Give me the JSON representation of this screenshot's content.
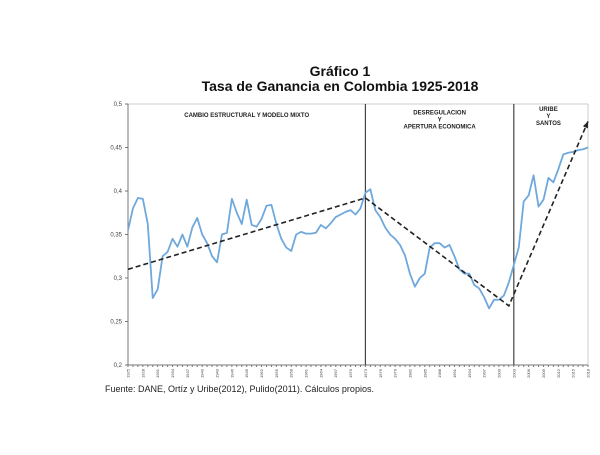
{
  "chart_data": {
    "type": "line",
    "title": "Gráfico 1",
    "subtitle": "Tasa de Ganancia en Colombia 1925-2018",
    "xlabel": "",
    "ylabel": "",
    "xlim": [
      1925,
      2018
    ],
    "ylim": [
      0.2,
      0.5
    ],
    "yticks": [
      "0,2",
      "0,25",
      "0,3",
      "0,35",
      "0,4",
      "0,45",
      "0,5"
    ],
    "xtick_step": 3,
    "grid": false,
    "series_color": "#6fa8dc",
    "trend_color": "#222222",
    "x_start": 1925,
    "values": [
      0.355,
      0.38,
      0.392,
      0.391,
      0.362,
      0.277,
      0.287,
      0.325,
      0.33,
      0.345,
      0.336,
      0.35,
      0.336,
      0.358,
      0.369,
      0.35,
      0.34,
      0.325,
      0.318,
      0.35,
      0.352,
      0.391,
      0.375,
      0.362,
      0.39,
      0.361,
      0.359,
      0.368,
      0.383,
      0.384,
      0.362,
      0.345,
      0.335,
      0.331,
      0.35,
      0.353,
      0.351,
      0.351,
      0.352,
      0.361,
      0.357,
      0.363,
      0.37,
      0.373,
      0.376,
      0.378,
      0.373,
      0.38,
      0.398,
      0.402,
      0.378,
      0.37,
      0.358,
      0.35,
      0.345,
      0.338,
      0.326,
      0.305,
      0.29,
      0.3,
      0.305,
      0.335,
      0.34,
      0.34,
      0.335,
      0.338,
      0.325,
      0.31,
      0.305,
      0.305,
      0.292,
      0.288,
      0.278,
      0.265,
      0.275,
      0.275,
      0.28,
      0.295,
      0.315,
      0.335,
      0.388,
      0.395,
      0.418,
      0.382,
      0.39,
      0.415,
      0.41,
      0.425,
      0.442,
      0.444,
      0.445,
      0.447,
      0.448,
      0.45
    ],
    "trend": [
      {
        "x": 1925,
        "y": 0.31
      },
      {
        "x": 1973,
        "y": 0.392
      },
      {
        "x": 2002,
        "y": 0.268
      },
      {
        "x": 2018,
        "y": 0.48
      }
    ],
    "period_dividers": [
      1973,
      2003
    ],
    "annotations": [
      {
        "lines": [
          "CAMBIO ESTRUCTURAL Y MODELO MIXTO"
        ],
        "x": 1949,
        "y": 0.485
      },
      {
        "lines": [
          "DESREGULACION",
          "Y",
          "APERTURA ECONOMICA"
        ],
        "x": 1988,
        "y": 0.488
      },
      {
        "lines": [
          "URIBE",
          "Y",
          "SANTOS"
        ],
        "x": 2010,
        "y": 0.492
      }
    ]
  },
  "source": "Fuente: DANE, Ortíz y Uribe(2012), Pulido(2011). Cálculos propios."
}
